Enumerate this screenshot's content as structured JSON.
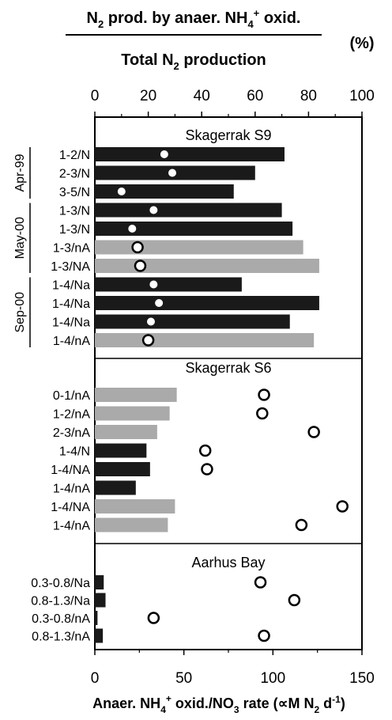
{
  "chart_data": {
    "type": "bar",
    "title": {
      "numerator_pre": "N",
      "numerator_sub1": "2",
      "numerator_mid": " prod. by anaer. NH",
      "numerator_sub2": "4",
      "numerator_sup": "+",
      "numerator_post": " oxid.",
      "denominator_pre": "Total N",
      "denominator_sub": "2",
      "denominator_post": " production",
      "unit": "(%)"
    },
    "xlabel": {
      "p1": "Anaer. NH",
      "sub1": "4",
      "sup1": "+",
      "p2": " oxid./NO",
      "sub2": "3",
      "p3": " rate (",
      "mu": "∝",
      "p4": "M N",
      "sub3": "2",
      "p5": " d",
      "sup2": "-1",
      "p6": ")"
    },
    "top_axis": {
      "range": [
        0,
        100
      ],
      "ticks": [
        "0",
        "20",
        "40",
        "60",
        "80",
        "100"
      ]
    },
    "bottom_axis": {
      "range": [
        0,
        150
      ],
      "ticks": [
        "0",
        "50",
        "100",
        "150"
      ]
    },
    "colors": {
      "N": "#1a1a1a",
      "NA": "#aaaaaa"
    },
    "panels": [
      {
        "name": "Skagerrak S9",
        "axis": "percent",
        "groups": [
          {
            "label": "Apr-99",
            "from": 0,
            "to": 2
          },
          {
            "label": "May-00",
            "from": 3,
            "to": 6
          },
          {
            "label": "Sep-00",
            "from": 7,
            "to": 10
          }
        ],
        "rows": [
          {
            "label": "1-2/N",
            "bar": 71,
            "color": "N",
            "point": 26,
            "marker": "filled"
          },
          {
            "label": "2-3/N",
            "bar": 60,
            "color": "N",
            "point": 29,
            "marker": "filled"
          },
          {
            "label": "3-5/N",
            "bar": 52,
            "color": "N",
            "point": 10,
            "marker": "filled"
          },
          {
            "label": "1-3/N",
            "bar": 70,
            "color": "N",
            "point": 22,
            "marker": "filled"
          },
          {
            "label": "1-3/N",
            "bar": 74,
            "color": "N",
            "point": 14,
            "marker": "filled"
          },
          {
            "label": "1-3/nA",
            "bar": 78,
            "color": "NA",
            "point": 16,
            "marker": "open"
          },
          {
            "label": "1-3/NA",
            "bar": 84,
            "color": "NA",
            "point": 17,
            "marker": "open"
          },
          {
            "label": "1-4/Na",
            "bar": 55,
            "color": "N",
            "point": 22,
            "marker": "filled"
          },
          {
            "label": "1-4/Na",
            "bar": 84,
            "color": "N",
            "point": 24,
            "marker": "filled"
          },
          {
            "label": "1-4/Na",
            "bar": 73,
            "color": "N",
            "point": 21,
            "marker": "filled"
          },
          {
            "label": "1-4/nA",
            "bar": 82,
            "color": "NA",
            "point": 20,
            "marker": "open"
          }
        ]
      },
      {
        "name": "Skagerrak S6",
        "axis": "rate",
        "groups": [],
        "rows": [
          {
            "label": "0-1/nA",
            "bar": 46,
            "color": "NA",
            "point": 95,
            "marker": "open"
          },
          {
            "label": "1-2/nA",
            "bar": 42,
            "color": "NA",
            "point": 94,
            "marker": "open"
          },
          {
            "label": "2-3/nA",
            "bar": 35,
            "color": "NA",
            "point": 123,
            "marker": "open"
          },
          {
            "label": "1-4/N",
            "bar": 29,
            "color": "N",
            "point": 62,
            "marker": "open"
          },
          {
            "label": "1-4/NA",
            "bar": 31,
            "color": "N",
            "point": 63,
            "marker": "open"
          },
          {
            "label": "1-4/nA",
            "bar": 23,
            "color": "N",
            "point": null,
            "marker": "none"
          },
          {
            "label": "1-4/NA",
            "bar": 45,
            "color": "NA",
            "point": 139,
            "marker": "open"
          },
          {
            "label": "1-4/nA",
            "bar": 41,
            "color": "NA",
            "point": 116,
            "marker": "open"
          }
        ]
      },
      {
        "name": "Aarhus Bay",
        "axis": "rate",
        "groups": [],
        "rows": [
          {
            "label": "0.3-0.8/Na",
            "bar": 5,
            "color": "N",
            "point": 93,
            "marker": "open"
          },
          {
            "label": "0.8-1.3/Na",
            "bar": 6,
            "color": "N",
            "point": 112,
            "marker": "open"
          },
          {
            "label": "0.3-0.8/nA",
            "bar": 1.5,
            "color": "N",
            "point": 33,
            "marker": "open"
          },
          {
            "label": "0.8-1.3/nA",
            "bar": 4.5,
            "color": "N",
            "point": 95,
            "marker": "open"
          }
        ]
      }
    ]
  }
}
